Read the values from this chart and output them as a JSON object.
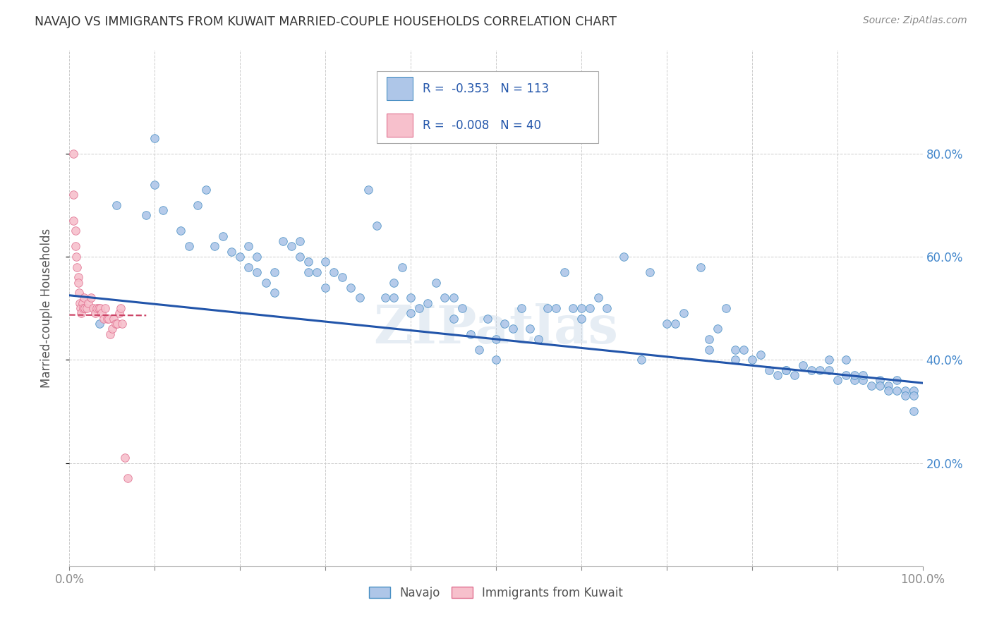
{
  "title": "NAVAJO VS IMMIGRANTS FROM KUWAIT MARRIED-COUPLE HOUSEHOLDS CORRELATION CHART",
  "source": "Source: ZipAtlas.com",
  "ylabel": "Married-couple Households",
  "watermark": "ZIPatlas",
  "legend_blue_R": "-0.353",
  "legend_blue_N": "113",
  "legend_pink_R": "-0.008",
  "legend_pink_N": "40",
  "legend_label_blue": "Navajo",
  "legend_label_pink": "Immigrants from Kuwait",
  "xlim": [
    0,
    1.0
  ],
  "ylim": [
    0,
    1.0
  ],
  "xtick_values": [
    0.0,
    0.1,
    0.2,
    0.3,
    0.4,
    0.5,
    0.6,
    0.7,
    0.8,
    0.9,
    1.0
  ],
  "xtick_labels_sparse": [
    "0.0%",
    "",
    "",
    "",
    "",
    "",
    "",
    "",
    "",
    "",
    "100.0%"
  ],
  "ytick_values": [
    0.2,
    0.4,
    0.6,
    0.8
  ],
  "ytick_labels": [
    "20.0%",
    "40.0%",
    "60.0%",
    "80.0%"
  ],
  "blue_color": "#aec6e8",
  "pink_color": "#f7c0cc",
  "blue_edge_color": "#4a90c4",
  "pink_edge_color": "#e07090",
  "blue_line_color": "#2255aa",
  "pink_line_color": "#cc4466",
  "title_color": "#333333",
  "axis_label_color": "#555555",
  "tick_color": "#888888",
  "grid_color": "#cccccc",
  "right_tick_color": "#4488cc",
  "legend_text_color": "#2255aa",
  "blue_x": [
    0.035,
    0.055,
    0.09,
    0.1,
    0.1,
    0.11,
    0.13,
    0.14,
    0.15,
    0.16,
    0.17,
    0.18,
    0.19,
    0.2,
    0.21,
    0.21,
    0.22,
    0.22,
    0.23,
    0.24,
    0.24,
    0.25,
    0.26,
    0.27,
    0.27,
    0.28,
    0.28,
    0.29,
    0.3,
    0.3,
    0.31,
    0.32,
    0.33,
    0.34,
    0.35,
    0.36,
    0.37,
    0.38,
    0.38,
    0.39,
    0.4,
    0.4,
    0.41,
    0.42,
    0.43,
    0.44,
    0.45,
    0.45,
    0.46,
    0.47,
    0.48,
    0.49,
    0.5,
    0.5,
    0.51,
    0.52,
    0.53,
    0.54,
    0.55,
    0.56,
    0.57,
    0.58,
    0.59,
    0.6,
    0.6,
    0.61,
    0.62,
    0.63,
    0.65,
    0.67,
    0.68,
    0.7,
    0.71,
    0.72,
    0.74,
    0.75,
    0.75,
    0.76,
    0.77,
    0.78,
    0.78,
    0.79,
    0.8,
    0.81,
    0.82,
    0.83,
    0.84,
    0.84,
    0.85,
    0.86,
    0.87,
    0.88,
    0.89,
    0.89,
    0.9,
    0.91,
    0.91,
    0.92,
    0.92,
    0.93,
    0.93,
    0.94,
    0.95,
    0.95,
    0.96,
    0.96,
    0.97,
    0.97,
    0.98,
    0.98,
    0.99,
    0.99,
    0.99
  ],
  "blue_y": [
    0.47,
    0.7,
    0.68,
    0.83,
    0.74,
    0.69,
    0.65,
    0.62,
    0.7,
    0.73,
    0.62,
    0.64,
    0.61,
    0.6,
    0.62,
    0.58,
    0.6,
    0.57,
    0.55,
    0.57,
    0.53,
    0.63,
    0.62,
    0.63,
    0.6,
    0.59,
    0.57,
    0.57,
    0.59,
    0.54,
    0.57,
    0.56,
    0.54,
    0.52,
    0.73,
    0.66,
    0.52,
    0.52,
    0.55,
    0.58,
    0.52,
    0.49,
    0.5,
    0.51,
    0.55,
    0.52,
    0.48,
    0.52,
    0.5,
    0.45,
    0.42,
    0.48,
    0.4,
    0.44,
    0.47,
    0.46,
    0.5,
    0.46,
    0.44,
    0.5,
    0.5,
    0.57,
    0.5,
    0.5,
    0.48,
    0.5,
    0.52,
    0.5,
    0.6,
    0.4,
    0.57,
    0.47,
    0.47,
    0.49,
    0.58,
    0.44,
    0.42,
    0.46,
    0.5,
    0.4,
    0.42,
    0.42,
    0.4,
    0.41,
    0.38,
    0.37,
    0.38,
    0.38,
    0.37,
    0.39,
    0.38,
    0.38,
    0.4,
    0.38,
    0.36,
    0.37,
    0.4,
    0.36,
    0.37,
    0.36,
    0.37,
    0.35,
    0.36,
    0.35,
    0.35,
    0.34,
    0.34,
    0.36,
    0.34,
    0.33,
    0.34,
    0.33,
    0.3
  ],
  "pink_x": [
    0.005,
    0.005,
    0.005,
    0.007,
    0.007,
    0.008,
    0.009,
    0.01,
    0.01,
    0.011,
    0.012,
    0.013,
    0.014,
    0.015,
    0.016,
    0.017,
    0.018,
    0.02,
    0.022,
    0.025,
    0.028,
    0.03,
    0.032,
    0.034,
    0.036,
    0.038,
    0.04,
    0.042,
    0.044,
    0.046,
    0.048,
    0.05,
    0.052,
    0.054,
    0.056,
    0.058,
    0.06,
    0.062,
    0.065,
    0.068
  ],
  "pink_y": [
    0.8,
    0.72,
    0.67,
    0.65,
    0.62,
    0.6,
    0.58,
    0.56,
    0.55,
    0.53,
    0.51,
    0.5,
    0.49,
    0.51,
    0.5,
    0.52,
    0.5,
    0.5,
    0.51,
    0.52,
    0.5,
    0.49,
    0.5,
    0.5,
    0.5,
    0.49,
    0.48,
    0.5,
    0.48,
    0.48,
    0.45,
    0.46,
    0.48,
    0.47,
    0.47,
    0.49,
    0.5,
    0.47,
    0.21,
    0.17
  ],
  "blue_trendline_x": [
    0.0,
    1.0
  ],
  "blue_trendline_y": [
    0.525,
    0.355
  ],
  "pink_trendline_x": [
    0.0,
    0.09
  ],
  "pink_trendline_y": [
    0.487,
    0.486
  ],
  "marker_size": 70
}
